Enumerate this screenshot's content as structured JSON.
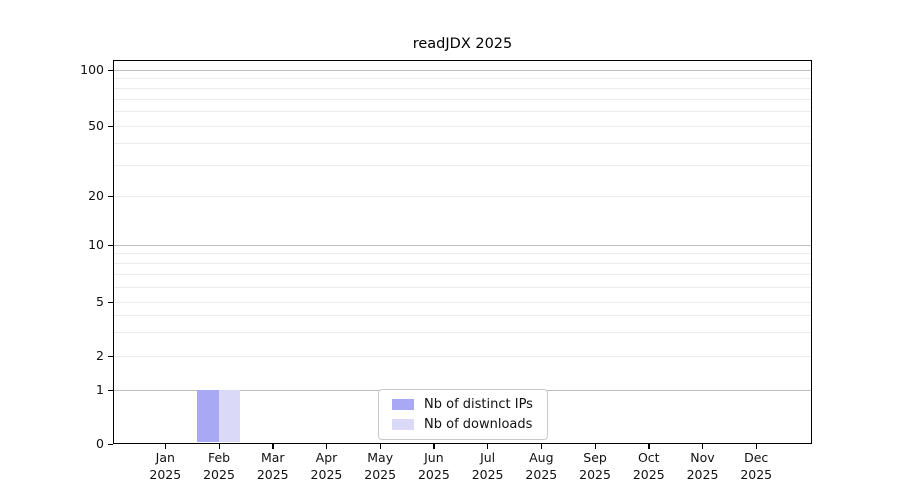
{
  "title": "readJDX 2025",
  "chart_data": {
    "type": "bar",
    "title": "readJDX 2025",
    "categories": [
      "Jan 2025",
      "Feb 2025",
      "Mar 2025",
      "Apr 2025",
      "May 2025",
      "Jun 2025",
      "Jul 2025",
      "Aug 2025",
      "Sep 2025",
      "Oct 2025",
      "Nov 2025",
      "Dec 2025"
    ],
    "x_ticklabels": [
      [
        "Jan",
        "2025"
      ],
      [
        "Feb",
        "2025"
      ],
      [
        "Mar",
        "2025"
      ],
      [
        "Apr",
        "2025"
      ],
      [
        "May",
        "2025"
      ],
      [
        "Jun",
        "2025"
      ],
      [
        "Jul",
        "2025"
      ],
      [
        "Aug",
        "2025"
      ],
      [
        "Sep",
        "2025"
      ],
      [
        "Oct",
        "2025"
      ],
      [
        "Nov",
        "2025"
      ],
      [
        "Dec",
        "2025"
      ]
    ],
    "series": [
      {
        "name": "Nb of distinct IPs",
        "color": "#a8a8f4",
        "values": [
          0,
          1,
          0,
          0,
          0,
          0,
          0,
          0,
          0,
          0,
          0,
          0
        ]
      },
      {
        "name": "Nb of downloads",
        "color": "#dadaf8",
        "values": [
          0,
          1,
          0,
          0,
          0,
          0,
          0,
          0,
          0,
          0,
          0,
          0
        ]
      }
    ],
    "xlabel": "",
    "ylabel": "",
    "ylim": [
      0,
      100
    ],
    "yscale": "log above 1, linear segment from 0 to 1",
    "yticks": [
      0,
      1,
      2,
      5,
      10,
      20,
      50,
      100
    ],
    "y_major_gridlines": [
      1,
      10,
      100
    ],
    "y_minor_gridlines": [
      2,
      3,
      4,
      5,
      6,
      7,
      8,
      9,
      20,
      30,
      40,
      50,
      60,
      70,
      80,
      90
    ],
    "grid": true,
    "legend_position": "inside bottom center"
  },
  "legend": {
    "items": [
      {
        "label": "Nb of distinct IPs",
        "color": "#a8a8f4"
      },
      {
        "label": "Nb of downloads",
        "color": "#dadaf8"
      }
    ]
  },
  "colors": {
    "axis": "#000000",
    "grid_major": "#bdbdbd",
    "grid_minor": "#ebebeb",
    "background": "#ffffff",
    "text": "#111111"
  }
}
